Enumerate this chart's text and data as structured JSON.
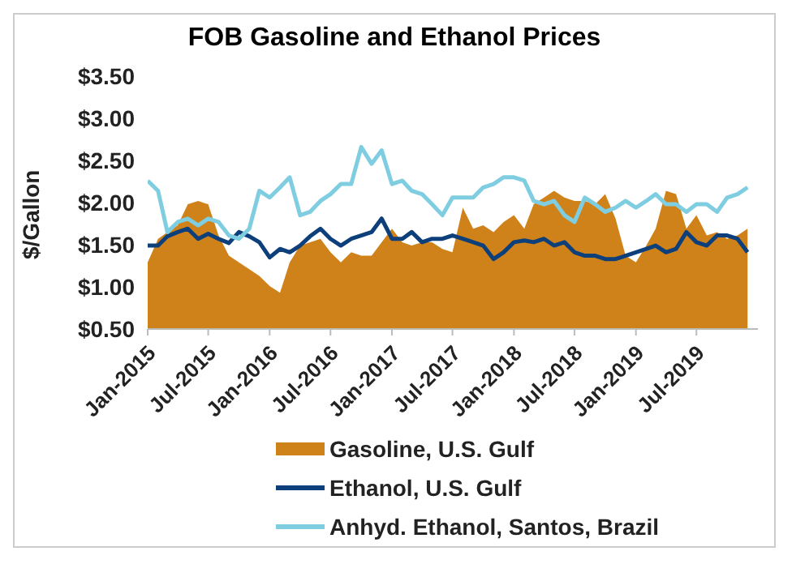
{
  "chart_data": {
    "type": "line",
    "title": "FOB Gasoline and Ethanol Prices",
    "ylabel": "$/Gallon",
    "x": [
      "2015-01",
      "2015-02",
      "2015-03",
      "2015-04",
      "2015-05",
      "2015-06",
      "2015-07",
      "2015-08",
      "2015-09",
      "2015-10",
      "2015-11",
      "2015-12",
      "2016-01",
      "2016-02",
      "2016-03",
      "2016-04",
      "2016-05",
      "2016-06",
      "2016-07",
      "2016-08",
      "2016-09",
      "2016-10",
      "2016-11",
      "2016-12",
      "2017-01",
      "2017-02",
      "2017-03",
      "2017-04",
      "2017-05",
      "2017-06",
      "2017-07",
      "2017-08",
      "2017-09",
      "2017-10",
      "2017-11",
      "2017-12",
      "2018-01",
      "2018-02",
      "2018-03",
      "2018-04",
      "2018-05",
      "2018-06",
      "2018-07",
      "2018-08",
      "2018-09",
      "2018-10",
      "2018-11",
      "2018-12",
      "2019-01",
      "2019-02",
      "2019-03",
      "2019-04",
      "2019-05",
      "2019-06",
      "2019-07",
      "2019-08",
      "2019-09",
      "2019-10",
      "2019-11",
      "2019-12"
    ],
    "series": [
      {
        "name": "Gasoline, U.S. Gulf",
        "type": "area",
        "color": "#d0821a",
        "values": [
          1.29,
          1.57,
          1.65,
          1.73,
          1.98,
          2.02,
          1.98,
          1.61,
          1.37,
          1.29,
          1.21,
          1.13,
          1.01,
          0.93,
          1.29,
          1.49,
          1.53,
          1.57,
          1.41,
          1.29,
          1.41,
          1.37,
          1.37,
          1.53,
          1.69,
          1.53,
          1.49,
          1.53,
          1.53,
          1.45,
          1.41,
          1.94,
          1.69,
          1.73,
          1.65,
          1.77,
          1.85,
          1.69,
          1.98,
          2.06,
          2.14,
          2.06,
          2.02,
          2.02,
          1.98,
          2.1,
          1.81,
          1.37,
          1.29,
          1.49,
          1.69,
          2.14,
          2.1,
          1.69,
          1.85,
          1.61,
          1.65,
          1.57,
          1.61,
          1.69
        ]
      },
      {
        "name": "Ethanol, U.S. Gulf",
        "color": "#0d3f7a",
        "values": [
          1.49,
          1.49,
          1.6,
          1.65,
          1.69,
          1.57,
          1.63,
          1.57,
          1.52,
          1.65,
          1.6,
          1.53,
          1.35,
          1.45,
          1.41,
          1.49,
          1.6,
          1.69,
          1.57,
          1.49,
          1.57,
          1.61,
          1.65,
          1.81,
          1.57,
          1.57,
          1.65,
          1.53,
          1.57,
          1.57,
          1.61,
          1.57,
          1.53,
          1.49,
          1.33,
          1.41,
          1.53,
          1.55,
          1.53,
          1.57,
          1.49,
          1.53,
          1.41,
          1.37,
          1.37,
          1.33,
          1.33,
          1.37,
          1.41,
          1.45,
          1.49,
          1.41,
          1.45,
          1.65,
          1.53,
          1.49,
          1.61,
          1.61,
          1.57,
          1.41
        ]
      },
      {
        "name": "Anhyd. Ethanol, Santos, Brazil",
        "color": "#7fcde0",
        "values": [
          2.26,
          2.14,
          1.65,
          1.77,
          1.81,
          1.73,
          1.81,
          1.77,
          1.61,
          1.57,
          1.69,
          2.14,
          2.06,
          2.18,
          2.3,
          1.85,
          1.89,
          2.02,
          2.1,
          2.22,
          2.22,
          2.66,
          2.46,
          2.62,
          2.22,
          2.26,
          2.14,
          2.1,
          1.98,
          1.85,
          2.06,
          2.06,
          2.06,
          2.18,
          2.22,
          2.3,
          2.3,
          2.26,
          2.02,
          1.98,
          2.02,
          1.85,
          1.77,
          2.06,
          1.98,
          1.89,
          1.94,
          2.02,
          1.94,
          2.02,
          2.1,
          1.98,
          1.98,
          1.89,
          1.98,
          1.98,
          1.89,
          2.06,
          2.1,
          2.18
        ]
      }
    ],
    "xlim": [
      "2015-01",
      "2020-01"
    ],
    "xticks": [
      {
        "value": "2015-01",
        "label": "Jan-2015"
      },
      {
        "value": "2015-07",
        "label": "Jul-2015"
      },
      {
        "value": "2016-01",
        "label": "Jan-2016"
      },
      {
        "value": "2016-07",
        "label": "Jul-2016"
      },
      {
        "value": "2017-01",
        "label": "Jan-2017"
      },
      {
        "value": "2017-07",
        "label": "Jul-2017"
      },
      {
        "value": "2018-01",
        "label": "Jan-2018"
      },
      {
        "value": "2018-07",
        "label": "Jul-2018"
      },
      {
        "value": "2019-01",
        "label": "Jan-2019"
      },
      {
        "value": "2019-07",
        "label": "Jul-2019"
      }
    ],
    "ylim": [
      0.5,
      3.5
    ],
    "yticks": [
      {
        "value": 0.5,
        "label": "$0.50"
      },
      {
        "value": 1,
        "label": "$1.00"
      },
      {
        "value": 1.5,
        "label": "$1.50"
      },
      {
        "value": 2,
        "label": "$2.00"
      },
      {
        "value": 2.5,
        "label": "$2.50"
      },
      {
        "value": 3,
        "label": "$3.00"
      },
      {
        "value": 3.5,
        "label": "$3.50"
      }
    ],
    "legend": "bottom",
    "marker": "none",
    "line_style": "solid"
  }
}
